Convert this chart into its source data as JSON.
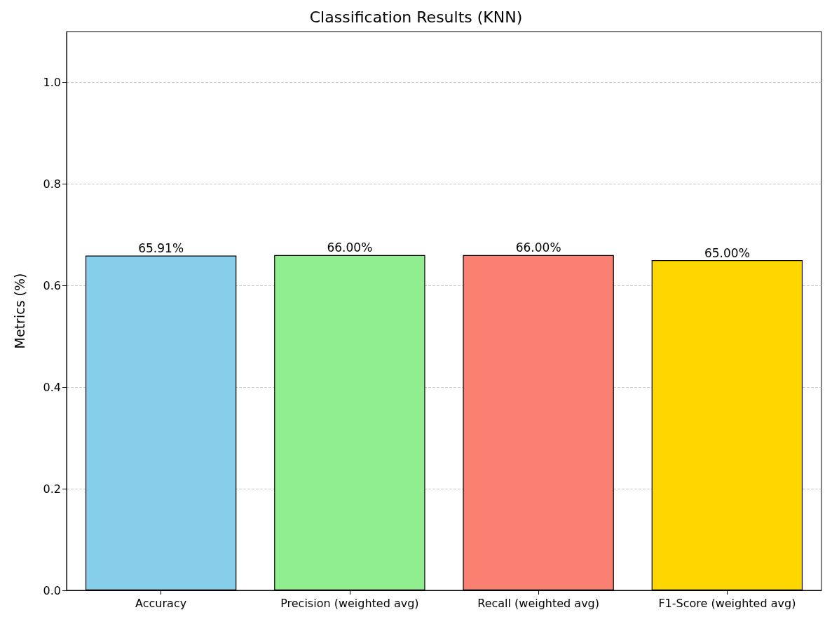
{
  "chart_data": {
    "type": "bar",
    "title": "Classification Results (KNN)",
    "ylabel": "Metrics (%)",
    "categories": [
      "Accuracy",
      "Precision (weighted avg)",
      "Recall (weighted avg)",
      "F1-Score (weighted avg)"
    ],
    "values": [
      0.6591,
      0.66,
      0.66,
      0.65
    ],
    "colors": [
      "#87ceeb",
      "#90ee90",
      "#fa8072",
      "#ffd700"
    ],
    "value_labels": [
      "65.91%",
      "66.00%",
      "66.00%",
      "65.00%"
    ],
    "ylim": [
      0,
      1.1
    ],
    "yticks": [
      {
        "value": 0,
        "label": "0.0"
      },
      {
        "value": 0.2,
        "label": "0.2"
      },
      {
        "value": 0.4,
        "label": "0.4"
      },
      {
        "value": 0.6,
        "label": "0.6"
      },
      {
        "value": 0.8,
        "label": "0.8"
      },
      {
        "value": 1,
        "label": "1.0"
      }
    ],
    "grid": "y",
    "line_style": "dashed"
  }
}
